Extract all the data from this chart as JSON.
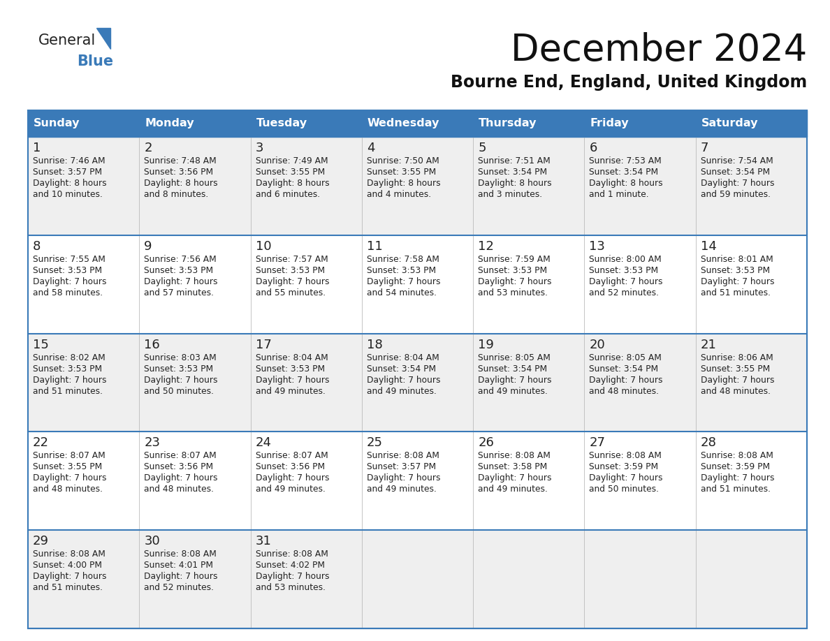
{
  "title": "December 2024",
  "subtitle": "Bourne End, England, United Kingdom",
  "header_color": "#3A7AB8",
  "header_text_color": "#FFFFFF",
  "row_colors": [
    "#EFEFEF",
    "#FFFFFF",
    "#EFEFEF",
    "#FFFFFF",
    "#EFEFEF"
  ],
  "border_color": "#3A7AB8",
  "text_color": "#222222",
  "day_headers": [
    "Sunday",
    "Monday",
    "Tuesday",
    "Wednesday",
    "Thursday",
    "Friday",
    "Saturday"
  ],
  "days": [
    {
      "day": 1,
      "col": 0,
      "row": 0,
      "sunrise": "7:46 AM",
      "sunset": "3:57 PM",
      "daylight_l1": "Daylight: 8 hours",
      "daylight_l2": "and 10 minutes."
    },
    {
      "day": 2,
      "col": 1,
      "row": 0,
      "sunrise": "7:48 AM",
      "sunset": "3:56 PM",
      "daylight_l1": "Daylight: 8 hours",
      "daylight_l2": "and 8 minutes."
    },
    {
      "day": 3,
      "col": 2,
      "row": 0,
      "sunrise": "7:49 AM",
      "sunset": "3:55 PM",
      "daylight_l1": "Daylight: 8 hours",
      "daylight_l2": "and 6 minutes."
    },
    {
      "day": 4,
      "col": 3,
      "row": 0,
      "sunrise": "7:50 AM",
      "sunset": "3:55 PM",
      "daylight_l1": "Daylight: 8 hours",
      "daylight_l2": "and 4 minutes."
    },
    {
      "day": 5,
      "col": 4,
      "row": 0,
      "sunrise": "7:51 AM",
      "sunset": "3:54 PM",
      "daylight_l1": "Daylight: 8 hours",
      "daylight_l2": "and 3 minutes."
    },
    {
      "day": 6,
      "col": 5,
      "row": 0,
      "sunrise": "7:53 AM",
      "sunset": "3:54 PM",
      "daylight_l1": "Daylight: 8 hours",
      "daylight_l2": "and 1 minute."
    },
    {
      "day": 7,
      "col": 6,
      "row": 0,
      "sunrise": "7:54 AM",
      "sunset": "3:54 PM",
      "daylight_l1": "Daylight: 7 hours",
      "daylight_l2": "and 59 minutes."
    },
    {
      "day": 8,
      "col": 0,
      "row": 1,
      "sunrise": "7:55 AM",
      "sunset": "3:53 PM",
      "daylight_l1": "Daylight: 7 hours",
      "daylight_l2": "and 58 minutes."
    },
    {
      "day": 9,
      "col": 1,
      "row": 1,
      "sunrise": "7:56 AM",
      "sunset": "3:53 PM",
      "daylight_l1": "Daylight: 7 hours",
      "daylight_l2": "and 57 minutes."
    },
    {
      "day": 10,
      "col": 2,
      "row": 1,
      "sunrise": "7:57 AM",
      "sunset": "3:53 PM",
      "daylight_l1": "Daylight: 7 hours",
      "daylight_l2": "and 55 minutes."
    },
    {
      "day": 11,
      "col": 3,
      "row": 1,
      "sunrise": "7:58 AM",
      "sunset": "3:53 PM",
      "daylight_l1": "Daylight: 7 hours",
      "daylight_l2": "and 54 minutes."
    },
    {
      "day": 12,
      "col": 4,
      "row": 1,
      "sunrise": "7:59 AM",
      "sunset": "3:53 PM",
      "daylight_l1": "Daylight: 7 hours",
      "daylight_l2": "and 53 minutes."
    },
    {
      "day": 13,
      "col": 5,
      "row": 1,
      "sunrise": "8:00 AM",
      "sunset": "3:53 PM",
      "daylight_l1": "Daylight: 7 hours",
      "daylight_l2": "and 52 minutes."
    },
    {
      "day": 14,
      "col": 6,
      "row": 1,
      "sunrise": "8:01 AM",
      "sunset": "3:53 PM",
      "daylight_l1": "Daylight: 7 hours",
      "daylight_l2": "and 51 minutes."
    },
    {
      "day": 15,
      "col": 0,
      "row": 2,
      "sunrise": "8:02 AM",
      "sunset": "3:53 PM",
      "daylight_l1": "Daylight: 7 hours",
      "daylight_l2": "and 51 minutes."
    },
    {
      "day": 16,
      "col": 1,
      "row": 2,
      "sunrise": "8:03 AM",
      "sunset": "3:53 PM",
      "daylight_l1": "Daylight: 7 hours",
      "daylight_l2": "and 50 minutes."
    },
    {
      "day": 17,
      "col": 2,
      "row": 2,
      "sunrise": "8:04 AM",
      "sunset": "3:53 PM",
      "daylight_l1": "Daylight: 7 hours",
      "daylight_l2": "and 49 minutes."
    },
    {
      "day": 18,
      "col": 3,
      "row": 2,
      "sunrise": "8:04 AM",
      "sunset": "3:54 PM",
      "daylight_l1": "Daylight: 7 hours",
      "daylight_l2": "and 49 minutes."
    },
    {
      "day": 19,
      "col": 4,
      "row": 2,
      "sunrise": "8:05 AM",
      "sunset": "3:54 PM",
      "daylight_l1": "Daylight: 7 hours",
      "daylight_l2": "and 49 minutes."
    },
    {
      "day": 20,
      "col": 5,
      "row": 2,
      "sunrise": "8:05 AM",
      "sunset": "3:54 PM",
      "daylight_l1": "Daylight: 7 hours",
      "daylight_l2": "and 48 minutes."
    },
    {
      "day": 21,
      "col": 6,
      "row": 2,
      "sunrise": "8:06 AM",
      "sunset": "3:55 PM",
      "daylight_l1": "Daylight: 7 hours",
      "daylight_l2": "and 48 minutes."
    },
    {
      "day": 22,
      "col": 0,
      "row": 3,
      "sunrise": "8:07 AM",
      "sunset": "3:55 PM",
      "daylight_l1": "Daylight: 7 hours",
      "daylight_l2": "and 48 minutes."
    },
    {
      "day": 23,
      "col": 1,
      "row": 3,
      "sunrise": "8:07 AM",
      "sunset": "3:56 PM",
      "daylight_l1": "Daylight: 7 hours",
      "daylight_l2": "and 48 minutes."
    },
    {
      "day": 24,
      "col": 2,
      "row": 3,
      "sunrise": "8:07 AM",
      "sunset": "3:56 PM",
      "daylight_l1": "Daylight: 7 hours",
      "daylight_l2": "and 49 minutes."
    },
    {
      "day": 25,
      "col": 3,
      "row": 3,
      "sunrise": "8:08 AM",
      "sunset": "3:57 PM",
      "daylight_l1": "Daylight: 7 hours",
      "daylight_l2": "and 49 minutes."
    },
    {
      "day": 26,
      "col": 4,
      "row": 3,
      "sunrise": "8:08 AM",
      "sunset": "3:58 PM",
      "daylight_l1": "Daylight: 7 hours",
      "daylight_l2": "and 49 minutes."
    },
    {
      "day": 27,
      "col": 5,
      "row": 3,
      "sunrise": "8:08 AM",
      "sunset": "3:59 PM",
      "daylight_l1": "Daylight: 7 hours",
      "daylight_l2": "and 50 minutes."
    },
    {
      "day": 28,
      "col": 6,
      "row": 3,
      "sunrise": "8:08 AM",
      "sunset": "3:59 PM",
      "daylight_l1": "Daylight: 7 hours",
      "daylight_l2": "and 51 minutes."
    },
    {
      "day": 29,
      "col": 0,
      "row": 4,
      "sunrise": "8:08 AM",
      "sunset": "4:00 PM",
      "daylight_l1": "Daylight: 7 hours",
      "daylight_l2": "and 51 minutes."
    },
    {
      "day": 30,
      "col": 1,
      "row": 4,
      "sunrise": "8:08 AM",
      "sunset": "4:01 PM",
      "daylight_l1": "Daylight: 7 hours",
      "daylight_l2": "and 52 minutes."
    },
    {
      "day": 31,
      "col": 2,
      "row": 4,
      "sunrise": "8:08 AM",
      "sunset": "4:02 PM",
      "daylight_l1": "Daylight: 7 hours",
      "daylight_l2": "and 53 minutes."
    }
  ]
}
